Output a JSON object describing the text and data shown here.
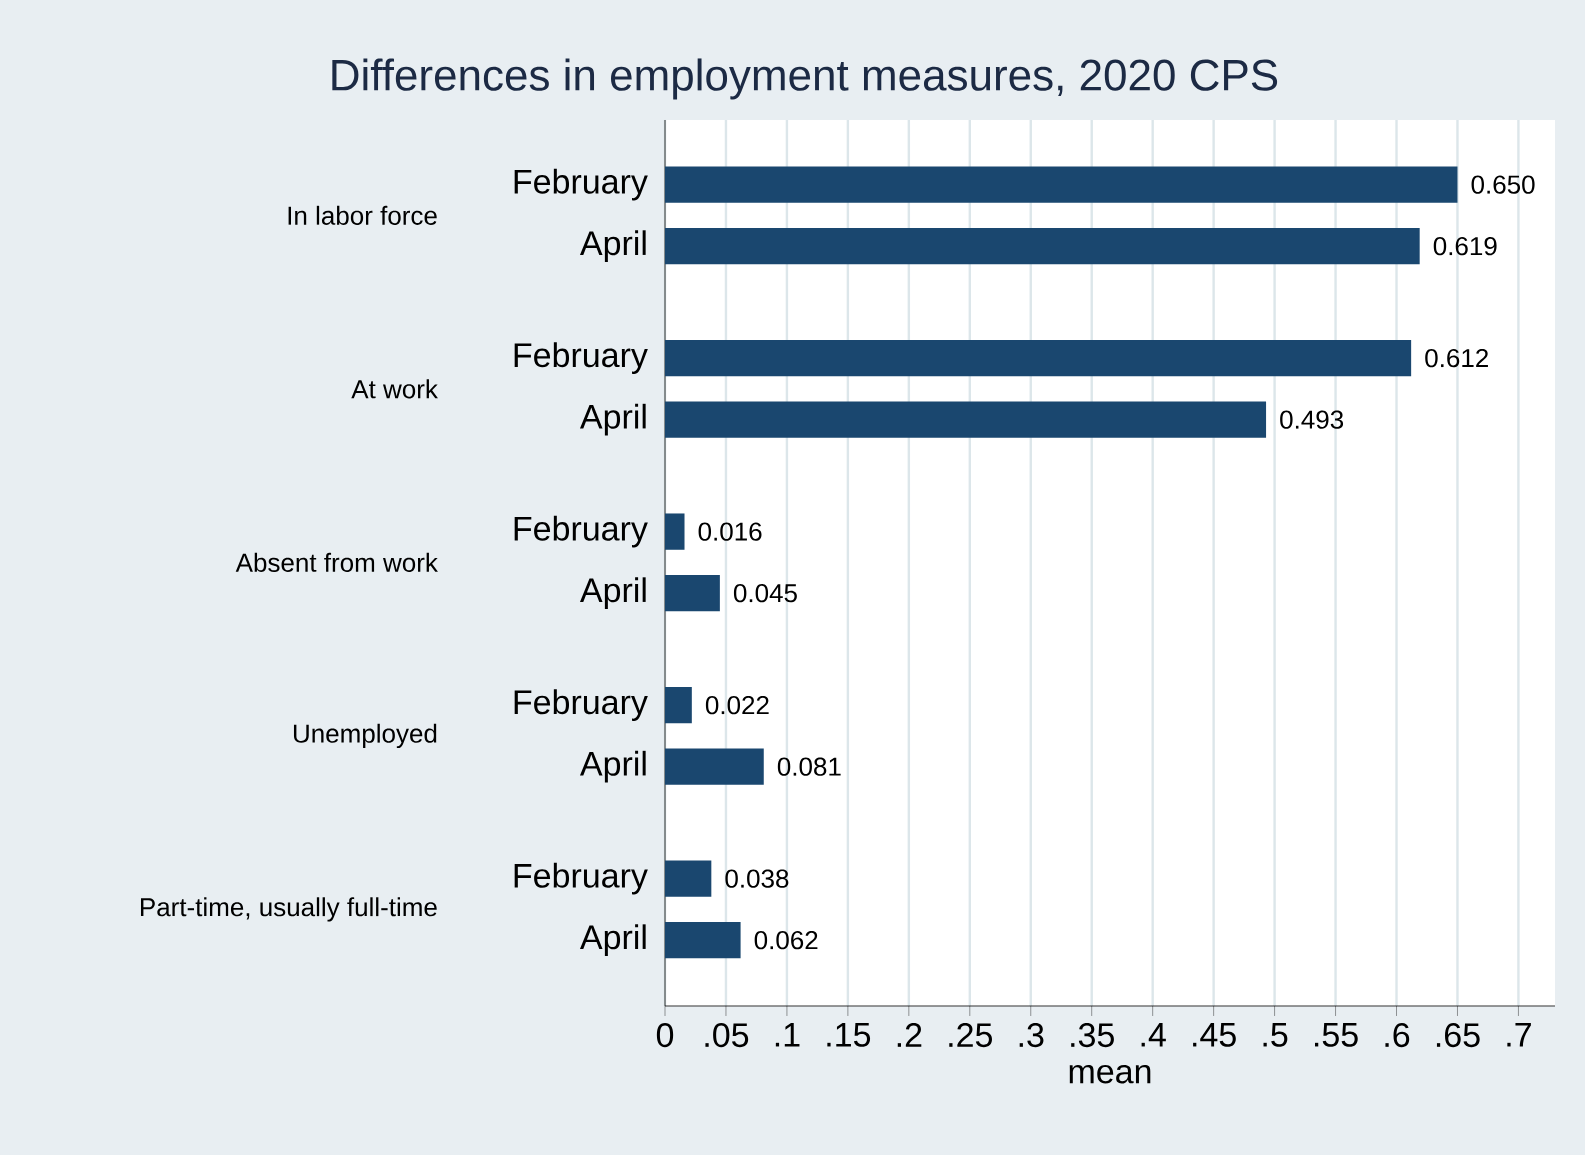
{
  "chart_data": {
    "type": "bar",
    "orientation": "horizontal",
    "title": "Differences in employment measures, 2020 CPS",
    "xlabel": "mean",
    "categories": [
      "February",
      "April",
      "February",
      "April",
      "February",
      "April",
      "February",
      "April",
      "February",
      "April"
    ],
    "values": [
      0.65,
      0.619,
      0.612,
      0.493,
      0.016,
      0.045,
      0.022,
      0.081,
      0.038,
      0.062
    ],
    "value_labels": [
      "0.650",
      "0.619",
      "0.612",
      "0.493",
      "0.016",
      "0.045",
      "0.022",
      "0.081",
      "0.038",
      "0.062"
    ],
    "color": "#1a476f",
    "xlim": [
      0,
      0.73
    ],
    "xticks": [
      0,
      {
        "value": 0.05,
        "label": ".05"
      },
      {
        "value": 0.1,
        "label": ".1"
      },
      {
        "value": 0.15,
        "label": ".15"
      },
      {
        "value": 0.2,
        "label": ".2"
      },
      {
        "value": 0.25,
        "label": ".25"
      },
      {
        "value": 0.3,
        "label": ".3"
      },
      {
        "value": 0.35,
        "label": ".35"
      },
      {
        "value": 0.4,
        "label": ".4"
      },
      {
        "value": 0.45,
        "label": ".45"
      },
      {
        "value": 0.5,
        "label": ".5"
      },
      {
        "value": 0.55,
        "label": ".55"
      },
      {
        "value": 0.6,
        "label": ".6"
      },
      {
        "value": 0.65,
        "label": ".65"
      },
      {
        "value": 0.7,
        "label": ".7"
      }
    ],
    "grid": "x",
    "annotations": [
      "In labor force",
      "At work",
      "Absent from work",
      "Unemployed",
      "Part-time, usually full-time"
    ]
  }
}
